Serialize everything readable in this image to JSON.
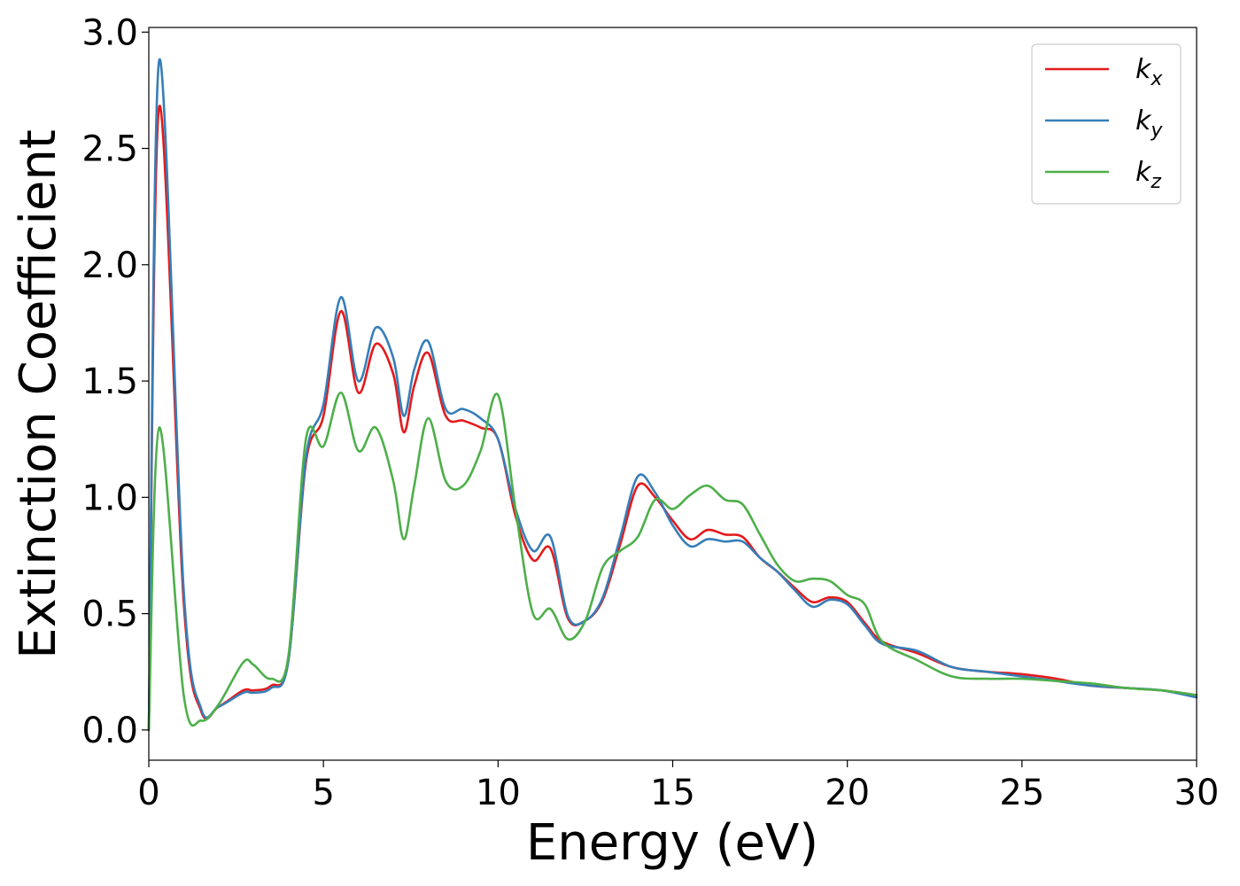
{
  "chart_data": {
    "type": "line",
    "xlabel": "Energy (eV)",
    "ylabel": "Extinction Coefficient",
    "xlim": [
      0,
      30
    ],
    "ylim": [
      -0.13,
      3.02
    ],
    "xticks": [
      0,
      5,
      10,
      15,
      20,
      25,
      30
    ],
    "yticks": [
      0.0,
      0.5,
      1.0,
      1.5,
      2.0,
      2.5,
      3.0
    ],
    "xtick_labels": [
      "0",
      "5",
      "10",
      "15",
      "20",
      "25",
      "30"
    ],
    "ytick_labels": [
      "0.0",
      "0.5",
      "1.0",
      "1.5",
      "2.0",
      "2.5",
      "3.0"
    ],
    "grid": false,
    "legend_position": "top-right",
    "x": [
      0.0,
      0.3,
      1.0,
      1.5,
      2.0,
      2.7,
      3.0,
      3.5,
      4.0,
      4.5,
      5.0,
      5.5,
      6.0,
      6.5,
      7.0,
      7.3,
      7.6,
      8.0,
      8.5,
      9.0,
      9.5,
      10.0,
      10.5,
      11.0,
      11.5,
      12.0,
      12.5,
      13.0,
      13.5,
      14.0,
      14.5,
      15.0,
      15.5,
      16.0,
      16.5,
      17.0,
      17.5,
      18.0,
      18.5,
      19.0,
      19.5,
      20.0,
      20.5,
      21.0,
      22.0,
      23.0,
      24.0,
      25.0,
      26.0,
      27.0,
      28.0,
      29.0,
      30.0
    ],
    "series": [
      {
        "name": "k",
        "subscript": "x",
        "color": "#e41a1c",
        "values": [
          0.0,
          2.68,
          0.55,
          0.08,
          0.1,
          0.17,
          0.17,
          0.19,
          0.3,
          1.15,
          1.35,
          1.8,
          1.45,
          1.66,
          1.53,
          1.28,
          1.48,
          1.62,
          1.35,
          1.33,
          1.3,
          1.25,
          0.92,
          0.73,
          0.78,
          0.48,
          0.47,
          0.56,
          0.8,
          1.05,
          1.0,
          0.9,
          0.82,
          0.86,
          0.84,
          0.83,
          0.74,
          0.68,
          0.61,
          0.55,
          0.57,
          0.55,
          0.46,
          0.38,
          0.33,
          0.27,
          0.25,
          0.24,
          0.22,
          0.19,
          0.18,
          0.17,
          0.15
        ]
      },
      {
        "name": "k",
        "subscript": "y",
        "color": "#377eb8",
        "values": [
          0.0,
          2.88,
          0.6,
          0.09,
          0.1,
          0.16,
          0.16,
          0.18,
          0.3,
          1.17,
          1.4,
          1.86,
          1.5,
          1.73,
          1.6,
          1.35,
          1.55,
          1.67,
          1.38,
          1.38,
          1.34,
          1.25,
          0.95,
          0.77,
          0.83,
          0.49,
          0.47,
          0.57,
          0.83,
          1.09,
          1.02,
          0.88,
          0.79,
          0.82,
          0.81,
          0.81,
          0.74,
          0.68,
          0.6,
          0.53,
          0.56,
          0.54,
          0.45,
          0.37,
          0.34,
          0.27,
          0.25,
          0.23,
          0.21,
          0.19,
          0.18,
          0.17,
          0.14
        ]
      },
      {
        "name": "k",
        "subscript": "z",
        "color": "#4daf4a",
        "values": [
          0.0,
          1.3,
          0.15,
          0.04,
          0.11,
          0.29,
          0.28,
          0.22,
          0.32,
          1.25,
          1.22,
          1.45,
          1.2,
          1.3,
          1.07,
          0.82,
          1.05,
          1.34,
          1.07,
          1.05,
          1.2,
          1.44,
          0.95,
          0.5,
          0.52,
          0.39,
          0.47,
          0.7,
          0.77,
          0.83,
          0.99,
          0.95,
          1.01,
          1.05,
          0.99,
          0.97,
          0.84,
          0.71,
          0.64,
          0.65,
          0.64,
          0.58,
          0.54,
          0.38,
          0.3,
          0.23,
          0.22,
          0.22,
          0.21,
          0.2,
          0.18,
          0.17,
          0.15
        ]
      }
    ]
  }
}
